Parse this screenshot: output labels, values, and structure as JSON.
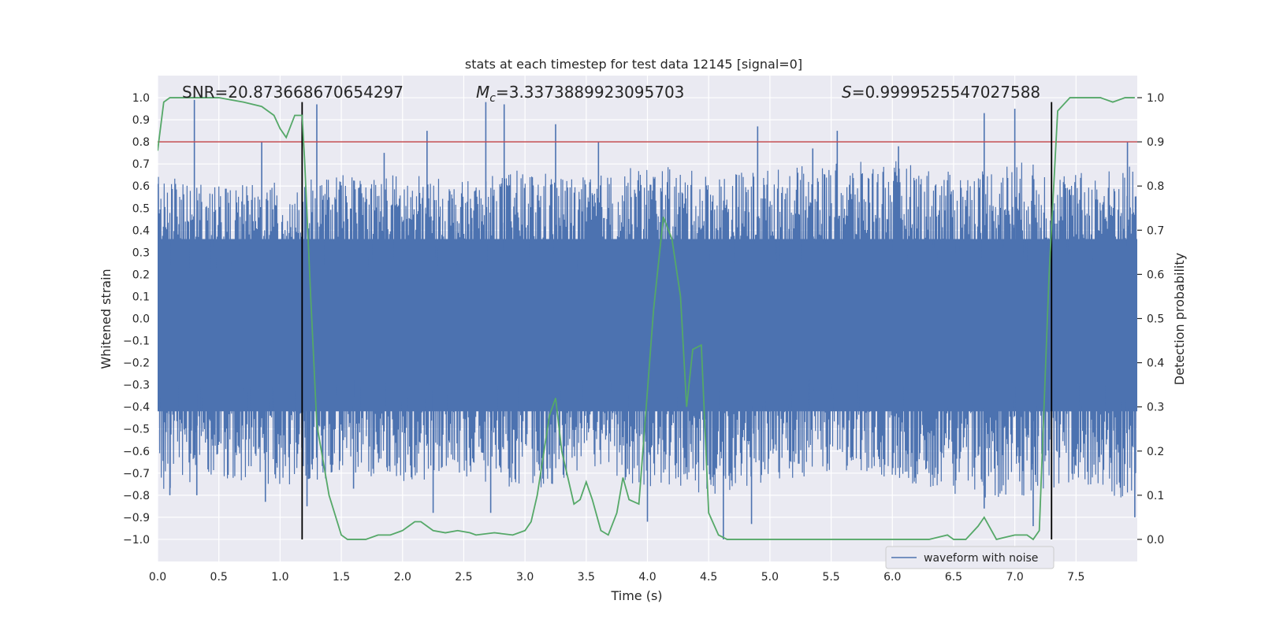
{
  "chart_data": {
    "type": "line",
    "title": "stats at each timestep for test data 12145 [signal=0]",
    "xlabel": "Time (s)",
    "ylabel_left": "Whitened strain",
    "ylabel_right": "Detection probability",
    "xlim": [
      0.0,
      8.0
    ],
    "ylim_left": [
      -1.1,
      1.1
    ],
    "ylim_right": [
      -0.05,
      1.05
    ],
    "xticks": [
      "0.0",
      "0.5",
      "1.0",
      "1.5",
      "2.0",
      "2.5",
      "3.0",
      "3.5",
      "4.0",
      "4.5",
      "5.0",
      "5.5",
      "6.0",
      "6.5",
      "7.0",
      "7.5"
    ],
    "yticks_left": [
      "1.0",
      "0.9",
      "0.8",
      "0.7",
      "0.6",
      "0.5",
      "0.4",
      "0.3",
      "0.2",
      "0.1",
      "0.0",
      "−0.1",
      "−0.2",
      "−0.3",
      "−0.4",
      "−0.5",
      "−0.6",
      "−0.7",
      "−0.8",
      "−0.9",
      "−1.0"
    ],
    "yticks_right": [
      "1.0",
      "0.9",
      "0.8",
      "0.7",
      "0.6",
      "0.5",
      "0.4",
      "0.3",
      "0.2",
      "0.1",
      "0.0"
    ],
    "grid": true,
    "legend_position": "lower-right",
    "annotations": {
      "snr": "SNR=20.873668670654297",
      "mc_symbol": "M",
      "mc_sub": "c",
      "mc_value": "=3.3373889923095703",
      "s_symbol": "S",
      "s_value": "=0.9999525547027588"
    },
    "vertical_lines": [
      1.18,
      7.3
    ],
    "threshold": {
      "axis": "right",
      "value": 0.9,
      "color": "#c44e52"
    },
    "series": [
      {
        "name": "waveform with noise",
        "axis": "left",
        "color": "#4c72b0",
        "envelope": {
          "x": [
            0.0,
            0.5,
            1.0,
            1.5,
            2.0,
            2.5,
            3.0,
            3.5,
            4.0,
            4.5,
            5.0,
            5.5,
            6.0,
            6.5,
            7.0,
            7.5,
            8.0
          ],
          "upper": [
            0.65,
            0.6,
            0.62,
            0.65,
            0.66,
            0.62,
            0.68,
            0.64,
            0.7,
            0.66,
            0.68,
            0.7,
            0.72,
            0.66,
            0.72,
            0.66,
            0.7
          ],
          "lower": [
            -0.78,
            -0.72,
            -0.76,
            -0.72,
            -0.75,
            -0.72,
            -0.78,
            -0.72,
            -0.76,
            -0.8,
            -0.74,
            -0.7,
            -0.72,
            -0.8,
            -0.82,
            -0.74,
            -0.86
          ]
        },
        "spikes": [
          [
            0.3,
            0.99
          ],
          [
            0.85,
            0.8
          ],
          [
            1.3,
            0.97
          ],
          [
            1.85,
            0.75
          ],
          [
            2.2,
            0.85
          ],
          [
            2.68,
            0.98
          ],
          [
            2.83,
            0.97
          ],
          [
            3.25,
            0.88
          ],
          [
            3.6,
            0.8
          ],
          [
            4.9,
            0.87
          ],
          [
            5.35,
            0.77
          ],
          [
            5.55,
            0.85
          ],
          [
            6.05,
            0.78
          ],
          [
            6.75,
            0.93
          ],
          [
            7.0,
            0.95
          ],
          [
            7.92,
            0.8
          ],
          [
            0.1,
            -0.8
          ],
          [
            0.32,
            -0.8
          ],
          [
            0.88,
            -0.83
          ],
          [
            1.22,
            -0.85
          ],
          [
            1.6,
            -0.77
          ],
          [
            2.25,
            -0.88
          ],
          [
            2.72,
            -0.88
          ],
          [
            4.0,
            -0.92
          ],
          [
            4.62,
            -1.0
          ],
          [
            4.85,
            -0.93
          ],
          [
            6.75,
            -0.86
          ],
          [
            7.15,
            -0.94
          ],
          [
            7.98,
            -0.9
          ]
        ]
      },
      {
        "name": "",
        "axis": "right",
        "color": "#55a868",
        "x": [
          0.0,
          0.05,
          0.1,
          0.2,
          0.3,
          0.5,
          0.7,
          0.85,
          0.95,
          1.0,
          1.05,
          1.12,
          1.18,
          1.2,
          1.25,
          1.3,
          1.4,
          1.5,
          1.55,
          1.7,
          1.8,
          1.9,
          2.0,
          2.05,
          2.1,
          2.15,
          2.25,
          2.35,
          2.45,
          2.55,
          2.6,
          2.75,
          2.9,
          3.0,
          3.05,
          3.1,
          3.2,
          3.25,
          3.3,
          3.4,
          3.45,
          3.5,
          3.55,
          3.62,
          3.68,
          3.75,
          3.8,
          3.85,
          3.93,
          4.05,
          4.13,
          4.2,
          4.27,
          4.32,
          4.37,
          4.44,
          4.5,
          4.58,
          4.65,
          4.75,
          4.85,
          5.0,
          5.2,
          5.35,
          5.45,
          5.6,
          5.8,
          6.0,
          6.15,
          6.3,
          6.45,
          6.5,
          6.6,
          6.7,
          6.75,
          6.85,
          7.0,
          7.1,
          7.15,
          7.2,
          7.28,
          7.35,
          7.45,
          7.55,
          7.7,
          7.8,
          7.9,
          7.98
        ],
        "y": [
          0.88,
          0.99,
          1.0,
          1.0,
          1.0,
          1.0,
          0.99,
          0.98,
          0.96,
          0.93,
          0.91,
          0.96,
          0.96,
          0.86,
          0.55,
          0.26,
          0.1,
          0.01,
          0.0,
          0.0,
          0.01,
          0.01,
          0.02,
          0.03,
          0.04,
          0.04,
          0.02,
          0.015,
          0.02,
          0.015,
          0.01,
          0.015,
          0.01,
          0.02,
          0.04,
          0.1,
          0.28,
          0.32,
          0.2,
          0.08,
          0.09,
          0.13,
          0.09,
          0.02,
          0.01,
          0.06,
          0.14,
          0.09,
          0.08,
          0.52,
          0.73,
          0.68,
          0.55,
          0.3,
          0.43,
          0.44,
          0.06,
          0.01,
          0.0,
          0.0,
          0.0,
          0.0,
          0.0,
          0.0,
          0.0,
          0.0,
          0.0,
          0.0,
          0.0,
          0.0,
          0.01,
          0.0,
          0.0,
          0.03,
          0.05,
          0.0,
          0.01,
          0.01,
          0.0,
          0.02,
          0.6,
          0.97,
          1.0,
          1.0,
          1.0,
          0.99,
          1.0,
          1.0
        ]
      }
    ]
  }
}
